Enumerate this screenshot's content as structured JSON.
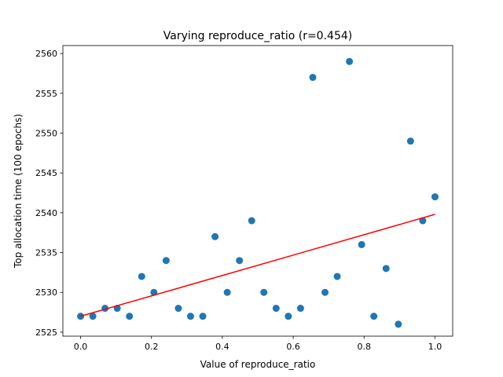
{
  "chart_data": {
    "type": "scatter",
    "title": "Varying reproduce_ratio (r=0.454)",
    "xlabel": "Value of reproduce_ratio",
    "ylabel": "Top allocation time (100 epochs)",
    "xlim": [
      -0.05,
      1.05
    ],
    "ylim": [
      2524.5,
      2561.0
    ],
    "xticks": [
      0.0,
      0.2,
      0.4,
      0.6,
      0.8,
      1.0
    ],
    "xtick_labels": [
      "0.0",
      "0.2",
      "0.4",
      "0.6",
      "0.8",
      "1.0"
    ],
    "yticks": [
      2525,
      2530,
      2535,
      2540,
      2545,
      2550,
      2555,
      2560
    ],
    "ytick_labels": [
      "2525",
      "2530",
      "2535",
      "2540",
      "2545",
      "2550",
      "2555",
      "2560"
    ],
    "grid": false,
    "points": {
      "x": [
        0.0,
        0.0345,
        0.069,
        0.1034,
        0.1379,
        0.1724,
        0.2069,
        0.2414,
        0.2759,
        0.3103,
        0.3448,
        0.3793,
        0.4138,
        0.4483,
        0.4828,
        0.5172,
        0.5517,
        0.5862,
        0.6207,
        0.6552,
        0.6897,
        0.7241,
        0.7586,
        0.7931,
        0.8276,
        0.8621,
        0.8966,
        0.931,
        0.9655,
        1.0
      ],
      "y": [
        2527,
        2527,
        2528,
        2528,
        2527,
        2532,
        2530,
        2534,
        2528,
        2527,
        2527,
        2537,
        2530,
        2534,
        2539,
        2530,
        2528,
        2527,
        2528,
        2557,
        2530,
        2532,
        2559,
        2536,
        2527,
        2533,
        2526,
        2549,
        2539,
        2542
      ],
      "color": "#1f77b4"
    },
    "fit_line": {
      "x": [
        0.0,
        1.0
      ],
      "y": [
        2527.0,
        2539.8
      ],
      "color": "#ff0000"
    }
  }
}
